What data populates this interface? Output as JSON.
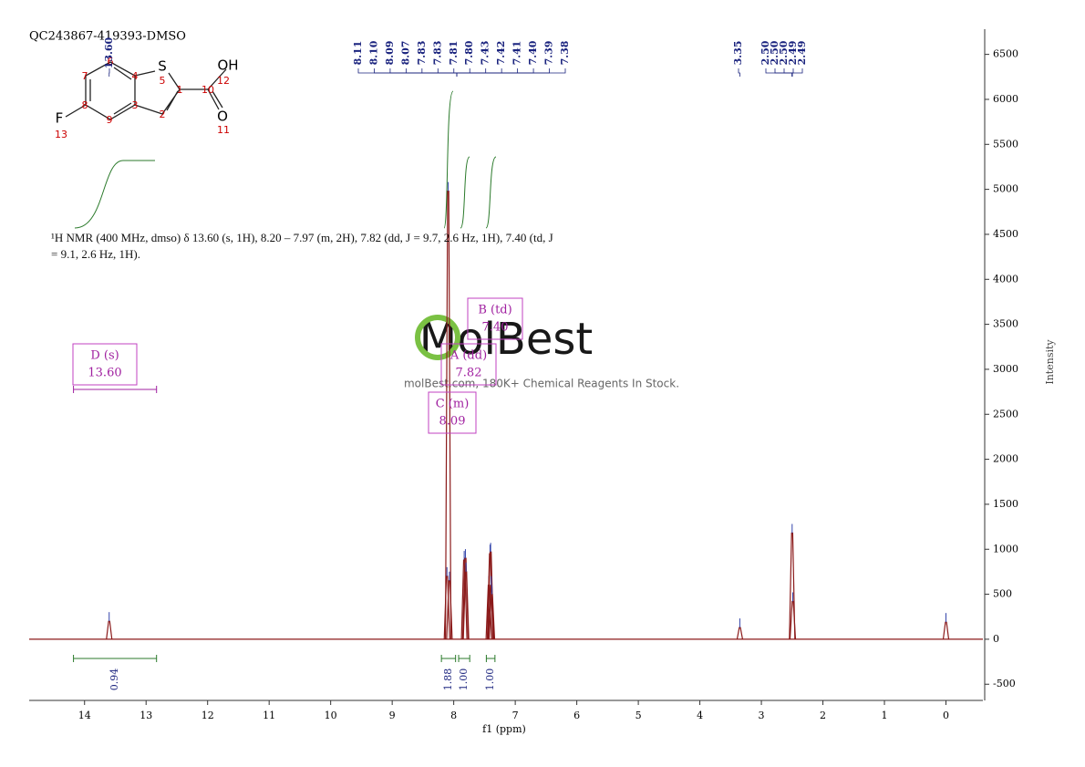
{
  "title": "QC243867-419393-DMSO",
  "description": "¹H NMR (400 MHz, dmso) δ 13.60 (s, 1H), 8.20 – 7.97 (m, 2H), 7.82 (dd, J = 9.7, 2.6 Hz, 1H), 7.40 (td, J = 9.1, 2.6 Hz, 1H).",
  "watermark": {
    "brand": "MolBest",
    "tagline": "molBest.com, 180K+ Chemical Reagents In Stock."
  },
  "structure": {
    "atoms": [
      "S",
      "OH",
      "O",
      "F"
    ],
    "numbers": [
      "1",
      "2",
      "3",
      "4",
      "5",
      "6",
      "7",
      "8",
      "9",
      "10",
      "11",
      "12",
      "13"
    ]
  },
  "chart_data": {
    "type": "nmr",
    "x_label": "f1 (ppm)",
    "y_label": "Intensity",
    "xlim": [
      14.9,
      -0.6
    ],
    "xticks": [
      14,
      13,
      12,
      11,
      10,
      9,
      8,
      7,
      6,
      5,
      4,
      3,
      2,
      1,
      0
    ],
    "ylim": [
      -680,
      6780
    ],
    "yticks": [
      -500,
      0,
      500,
      1000,
      1500,
      2000,
      2500,
      3000,
      3500,
      4000,
      4500,
      5000,
      5500,
      6000,
      6500
    ],
    "color": "#8b1a1a",
    "peaks": {
      "x": [
        13.6,
        8.11,
        8.09,
        8.07,
        7.83,
        7.81,
        7.8,
        7.43,
        7.41,
        7.4,
        7.39,
        7.38,
        3.35,
        2.5,
        2.49,
        0
      ],
      "values": [
        200,
        700,
        4980,
        650,
        880,
        900,
        750,
        600,
        950,
        970,
        600,
        500,
        130,
        1180,
        420,
        190
      ]
    },
    "peak_labels": [
      [
        "13.60"
      ],
      [
        "8.11",
        "8.10",
        "8.09",
        "8.07",
        "7.83",
        "7.83",
        "7.81",
        "7.80",
        "7.43",
        "7.42",
        "7.41",
        "7.40",
        "7.39",
        "7.38"
      ],
      [
        "3.35"
      ],
      [
        "2.50",
        "2.50",
        "2.50",
        "2.49",
        "2.49"
      ]
    ],
    "integrals": {
      "ranges": [
        [
          14.18,
          12.83
        ],
        [
          8.2,
          7.97
        ],
        [
          7.92,
          7.74
        ],
        [
          7.47,
          7.33
        ]
      ],
      "values": [
        0.94,
        1.88,
        1,
        1
      ],
      "value_labels": [
        "0.94",
        "1.88",
        "1.00",
        "1.00"
      ]
    },
    "multiplets": [
      {
        "label": "D (s)",
        "shift": "13.60"
      },
      {
        "label": "B (td)",
        "shift": "7.40"
      },
      {
        "label": "A (dd)",
        "shift": "7.82"
      },
      {
        "label": "C (m)",
        "shift": "8.09"
      }
    ]
  }
}
